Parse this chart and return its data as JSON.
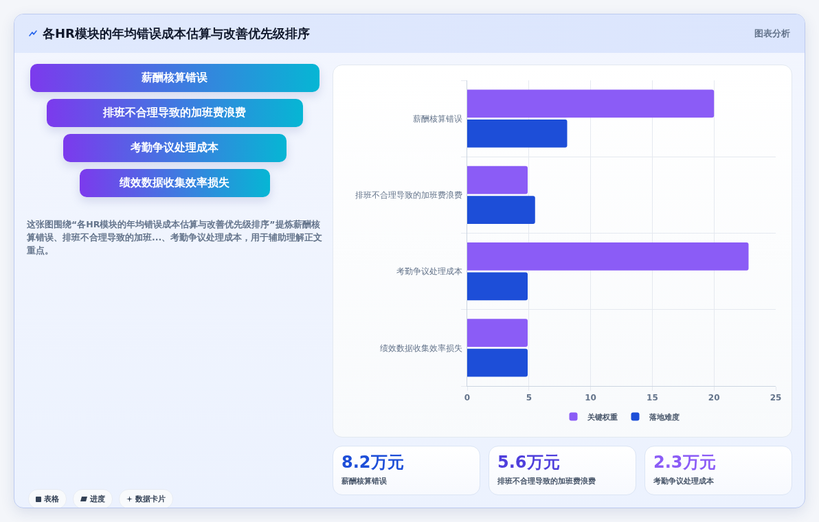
{
  "chart_data": [
    {
      "type": "other",
      "title": "各HR模块的年均错误成本估算与改善优先级排序",
      "annotations": [
        "图表分析"
      ]
    },
    {
      "type": "other",
      "categories": [
        "薪酬核算错误",
        "排班不合理导致的加班费浪费",
        "考勤争议处理成本",
        "绩效数据收集效率损失"
      ],
      "annotations": [
        "这张图围绕“各HR模块的年均错误成本估算与改善优先级排序”提炼薪酬核算错误、排班不合理导致的加班...、考勤争议处理成本，用于辅助理解正文重点。",
        "表格",
        "进度",
        "数据卡片"
      ]
    },
    {
      "type": "bar",
      "orientation": "horizontal",
      "categories": [
        "薪酬核算错误",
        "排班不合理导致的加班费浪费",
        "考勤争议处理成本",
        "绩效数据收集效率损失"
      ],
      "series": [
        {
          "name": "关键权重",
          "color": "#8b5cf6",
          "values": [
            20,
            4.9,
            22.8,
            4.9
          ]
        },
        {
          "name": "落地难度",
          "color": "#1d4ed8",
          "values": [
            8.1,
            5.5,
            4.9,
            4.9
          ]
        }
      ],
      "xlim": [
        0,
        25
      ],
      "xticks": [
        0,
        5,
        10,
        15,
        20,
        25
      ],
      "grid": true,
      "legend": "bottom"
    },
    {
      "type": "other",
      "categories": [
        "薪酬核算错误",
        "排班不合理导致的加班费浪费",
        "考勤争议处理成本"
      ],
      "values": [
        8.2,
        5.6,
        2.3
      ],
      "value_labels": [
        "8.2万元",
        "5.6万元",
        "2.3万元"
      ],
      "colors": [
        "#1d4ed8",
        "#4f3fdc",
        "#8b5cf6"
      ]
    }
  ]
}
